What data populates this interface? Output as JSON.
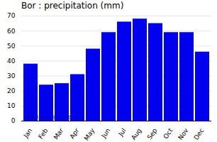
{
  "chart_data": {
    "type": "bar",
    "title": "Bor : precipitation (mm)",
    "categories": [
      "Jan",
      "Feb",
      "Mar",
      "Apr",
      "May",
      "Jun",
      "Jul",
      "Aug",
      "Sep",
      "Oct",
      "Nov",
      "Dec"
    ],
    "values": [
      38,
      24,
      25,
      31,
      48,
      59,
      66,
      68,
      65,
      59,
      59,
      46
    ],
    "color": "#0000EE",
    "ylim": [
      0,
      70
    ],
    "yticks": [
      0,
      10,
      20,
      30,
      40,
      50,
      60,
      70
    ],
    "grid": true,
    "annotations": [
      {
        "text": "www.allmetsat.com",
        "color": "#0000CC"
      }
    ]
  }
}
